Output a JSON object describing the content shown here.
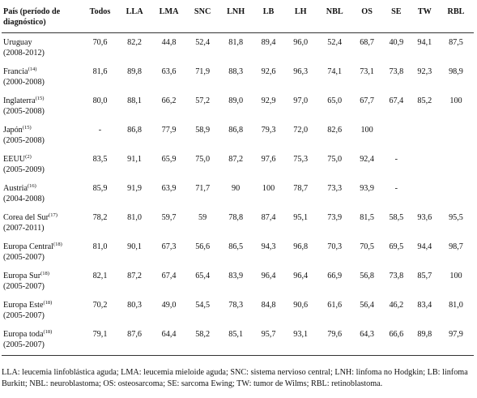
{
  "table": {
    "header_country": "País (período de diagnóstico)",
    "columns": [
      "Todos",
      "LLA",
      "LMA",
      "SNC",
      "LNH",
      "LB",
      "LH",
      "NBL",
      "OS",
      "SE",
      "TW",
      "RBL"
    ],
    "rows": [
      {
        "name": "Uruguay",
        "ref": "",
        "period": "(2008-2012)",
        "values": [
          "70,6",
          "82,2",
          "44,8",
          "52,4",
          "81,8",
          "89,4",
          "96,0",
          "52,4",
          "68,7",
          "40,9",
          "94,1",
          "87,5"
        ]
      },
      {
        "name": "Francia",
        "ref": "(14)",
        "period": "(2000-2008)",
        "values": [
          "81,6",
          "89,8",
          "63,6",
          "71,9",
          "88,3",
          "92,6",
          "96,3",
          "74,1",
          "73,1",
          "73,8",
          "92,3",
          "98,9"
        ]
      },
      {
        "name": "Inglaterra",
        "ref": "(15)",
        "period": "(2005-2008)",
        "values": [
          "80,0",
          "88,1",
          "66,2",
          "57,2",
          "89,0",
          "92,9",
          "97,0",
          "65,0",
          "67,7",
          "67,4",
          "85,2",
          "100"
        ]
      },
      {
        "name": "Japón",
        "ref": "(15)",
        "period": "(2005-2008)",
        "values": [
          "-",
          "86,8",
          "77,9",
          "58,9",
          "86,8",
          "79,3",
          "72,0",
          "82,6",
          "100",
          "",
          "",
          ""
        ]
      },
      {
        "name": "EEUU",
        "ref": "(2)",
        "period": "(2005-2009)",
        "values": [
          "83,5",
          "91,1",
          "65,9",
          "75,0",
          "87,2",
          "97,6",
          "75,3",
          "75,0",
          "92,4",
          "-",
          "",
          ""
        ]
      },
      {
        "name": "Austria",
        "ref": "(16)",
        "period": "(2004-2008)",
        "values": [
          "85,9",
          "91,9",
          "63,9",
          "71,7",
          "90",
          "100",
          "78,7",
          "73,3",
          "93,9",
          "-",
          "",
          ""
        ]
      },
      {
        "name": "Corea del Sur",
        "ref": "(17)",
        "period": "(2007-2011)",
        "values": [
          "78,2",
          "81,0",
          "59,7",
          "59",
          "78,8",
          "87,4",
          "95,1",
          "73,9",
          "81,5",
          "58,5",
          "93,6",
          "95,5"
        ]
      },
      {
        "name": "Europa Central",
        "ref": "(18)",
        "period": "(2005-2007)",
        "values": [
          "81,0",
          "90,1",
          "67,3",
          "56,6",
          "86,5",
          "94,3",
          "96,8",
          "70,3",
          "70,5",
          "69,5",
          "94,4",
          "98,7"
        ]
      },
      {
        "name": "Europa Sur",
        "ref": "(18)",
        "period": "(2005-2007)",
        "values": [
          "82,1",
          "87,2",
          "67,4",
          "65,4",
          "83,9",
          "96,4",
          "96,4",
          "66,9",
          "56,8",
          "73,8",
          "85,7",
          "100"
        ]
      },
      {
        "name": "Europa Este",
        "ref": "(18)",
        "period": "(2005-2007)",
        "values": [
          "70,2",
          "80,3",
          "49,0",
          "54,5",
          "78,3",
          "84,8",
          "90,6",
          "61,6",
          "56,4",
          "46,2",
          "83,4",
          "81,0"
        ]
      },
      {
        "name": "Europa toda",
        "ref": "(18)",
        "period": "(2005-2007)",
        "values": [
          "79,1",
          "87,6",
          "64,4",
          "58,2",
          "85,1",
          "95,7",
          "93,1",
          "79,6",
          "64,3",
          "66,6",
          "89,8",
          "97,9"
        ]
      }
    ]
  },
  "footnote": "LLA: leucemia linfoblástica aguda; LMA: leucemia mieloide aguda; SNC: sistema nervioso central; LNH: linfoma no Hodgkin; LB: linfoma Burkitt; NBL: neuroblastoma; OS: osteosarcoma; SE: sarcoma Ewing; TW: tumor de Wilms; RBL: retinoblastoma."
}
